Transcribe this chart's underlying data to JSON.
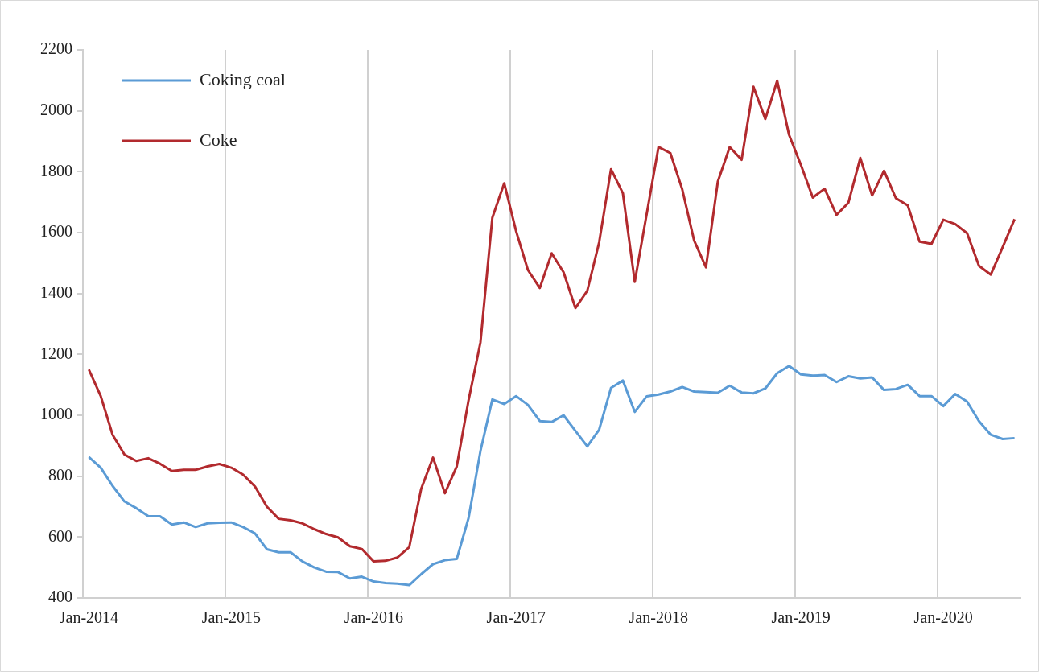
{
  "chart_data": {
    "type": "line",
    "categories": [
      "Jan-2014",
      null,
      null,
      null,
      null,
      null,
      null,
      null,
      null,
      null,
      null,
      null,
      "Jan-2015",
      null,
      null,
      null,
      null,
      null,
      null,
      null,
      null,
      null,
      null,
      null,
      "Jan-2016",
      null,
      null,
      null,
      null,
      null,
      null,
      null,
      null,
      null,
      null,
      null,
      "Jan-2017",
      null,
      null,
      null,
      null,
      null,
      null,
      null,
      null,
      null,
      null,
      null,
      "Jan-2018",
      null,
      null,
      null,
      null,
      null,
      null,
      null,
      null,
      null,
      null,
      null,
      "Jan-2019",
      null,
      null,
      null,
      null,
      null,
      null,
      null,
      null,
      null,
      null,
      null,
      "Jan-2020",
      null,
      null,
      null,
      null,
      null,
      null
    ],
    "series": [
      {
        "name": "Coking coal",
        "color": "#5b9bd5",
        "values": [
          863,
          828,
          768,
          717,
          695,
          669,
          668,
          641,
          648,
          633,
          645,
          647,
          648,
          633,
          612,
          560,
          550,
          550,
          520,
          500,
          486,
          485,
          464,
          470,
          454,
          449,
          447,
          442,
          478,
          511,
          524,
          528,
          663,
          883,
          1052,
          1037,
          1063,
          1034,
          981,
          978,
          1000,
          949,
          898,
          953,
          1090,
          1114,
          1011,
          1062,
          1068,
          1078,
          1093,
          1078,
          1076,
          1074,
          1097,
          1075,
          1072,
          1088,
          1138,
          1162,
          1134,
          1130,
          1132,
          1109,
          1128,
          1121,
          1124,
          1083,
          1086,
          1100,
          1063,
          1063,
          1030,
          1070,
          1045,
          981,
          936,
          922,
          925
        ]
      },
      {
        "name": "Coke",
        "color": "#b22a2e",
        "values": [
          1150,
          1063,
          936,
          871,
          850,
          859,
          841,
          817,
          821,
          821,
          832,
          840,
          828,
          805,
          766,
          700,
          660,
          655,
          645,
          626,
          610,
          599,
          570,
          561,
          520,
          522,
          533,
          567,
          758,
          861,
          744,
          832,
          1050,
          1240,
          1649,
          1762,
          1605,
          1477,
          1418,
          1532,
          1470,
          1352,
          1409,
          1568,
          1808,
          1729,
          1438,
          1660,
          1881,
          1861,
          1742,
          1574,
          1486,
          1768,
          1881,
          1839,
          2079,
          1973,
          2099,
          1921,
          1822,
          1715,
          1744,
          1658,
          1698,
          1845,
          1722,
          1803,
          1713,
          1689,
          1570,
          1563,
          1642,
          1628,
          1598,
          1491,
          1462,
          1552,
          1644
        ]
      }
    ],
    "ylim": [
      400,
      2200
    ],
    "yticks": [
      400,
      600,
      800,
      1000,
      1200,
      1400,
      1600,
      1800,
      2000,
      2200
    ],
    "grid": "x",
    "legend": "top left",
    "marker": "none",
    "line_style": "solid"
  }
}
